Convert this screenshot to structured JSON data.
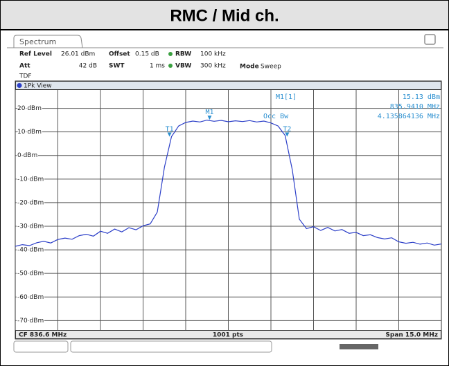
{
  "header": {
    "title": "RMC / Mid ch."
  },
  "instrument": {
    "tab": "Spectrum",
    "settings": {
      "ref_level_label": "Ref Level",
      "ref_level": "26.01 dBm",
      "offset_label": "Offset",
      "offset": "0.15 dB",
      "rbw_label": "RBW",
      "rbw": "100 kHz",
      "att_label": "Att",
      "att": "42 dB",
      "swt_label": "SWT",
      "swt": "1 ms",
      "vbw_label": "VBW",
      "vbw": "300 kHz",
      "mode_label": "Mode",
      "mode": "Sweep",
      "tdf": "TDF"
    },
    "view": "1Pk View",
    "readout": {
      "marker": "M1[1]",
      "level": "15.13 dBm",
      "frequency": "835.9410 MHz",
      "occ_bw_label": "Occ Bw",
      "occ_bw": "4.135864136 MHz"
    },
    "footer": {
      "center": "CF 836.6 MHz",
      "points": "1001 pts",
      "span": "Span 15.0 MHz"
    }
  },
  "chart_data": {
    "type": "line",
    "grid": true,
    "xlim": [
      829.1,
      844.1
    ],
    "ylim": [
      -74,
      27.5
    ],
    "yticks": [
      {
        "value": 20,
        "label": "20 dBm"
      },
      {
        "value": 10,
        "label": "10 dBm"
      },
      {
        "value": 0,
        "label": "0 dBm"
      },
      {
        "value": -10,
        "label": "-10 dBm"
      },
      {
        "value": -20,
        "label": "-20 dBm"
      },
      {
        "value": -30,
        "label": "-30 dBm"
      },
      {
        "value": -40,
        "label": "-40 dBm"
      },
      {
        "value": -50,
        "label": "-50 dBm"
      },
      {
        "value": -60,
        "label": "-60 dBm"
      },
      {
        "value": -70,
        "label": "-70 dBm"
      }
    ],
    "series": [
      {
        "name": "1Pk",
        "color": "#2c3fc8",
        "x": [
          829.1,
          829.35,
          829.6,
          829.85,
          830.1,
          830.35,
          830.6,
          830.85,
          831.1,
          831.35,
          831.6,
          831.85,
          832.1,
          832.35,
          832.6,
          832.85,
          833.1,
          833.35,
          833.6,
          833.85,
          834.1,
          834.35,
          834.6,
          834.85,
          835.1,
          835.35,
          835.6,
          835.85,
          836.1,
          836.35,
          836.6,
          836.85,
          837.1,
          837.35,
          837.6,
          837.85,
          838.1,
          838.35,
          838.6,
          838.85,
          839.1,
          839.35,
          839.6,
          839.85,
          840.1,
          840.35,
          840.6,
          840.85,
          841.1,
          841.35,
          841.6,
          841.85,
          842.1,
          842.35,
          842.6,
          842.85,
          843.1,
          843.35,
          843.6,
          843.85,
          844.1
        ],
        "values": [
          -38.5,
          -37.8,
          -38.2,
          -37.0,
          -36.4,
          -37.1,
          -35.6,
          -35.0,
          -35.5,
          -34.0,
          -33.4,
          -34.2,
          -32.1,
          -33.0,
          -31.2,
          -32.4,
          -30.6,
          -31.5,
          -29.8,
          -29.0,
          -24.0,
          -5.0,
          8.0,
          12.5,
          14.0,
          14.6,
          14.2,
          15.0,
          14.5,
          14.9,
          14.3,
          14.7,
          14.4,
          14.8,
          14.2,
          14.6,
          13.8,
          12.5,
          8.5,
          -6.0,
          -27.0,
          -31.0,
          -30.2,
          -31.8,
          -30.5,
          -32.0,
          -31.4,
          -33.0,
          -32.6,
          -34.0,
          -33.6,
          -34.8,
          -35.4,
          -34.9,
          -36.6,
          -37.2,
          -36.8,
          -37.6,
          -37.1,
          -38.0,
          -37.5
        ]
      }
    ],
    "markers": [
      {
        "label": "M1",
        "x": 835.941,
        "y": 15.13
      },
      {
        "label": "T1",
        "x": 834.53,
        "y": 8
      },
      {
        "label": "T2",
        "x": 838.67,
        "y": 8
      }
    ],
    "marker_color": "#2a8fd0"
  }
}
